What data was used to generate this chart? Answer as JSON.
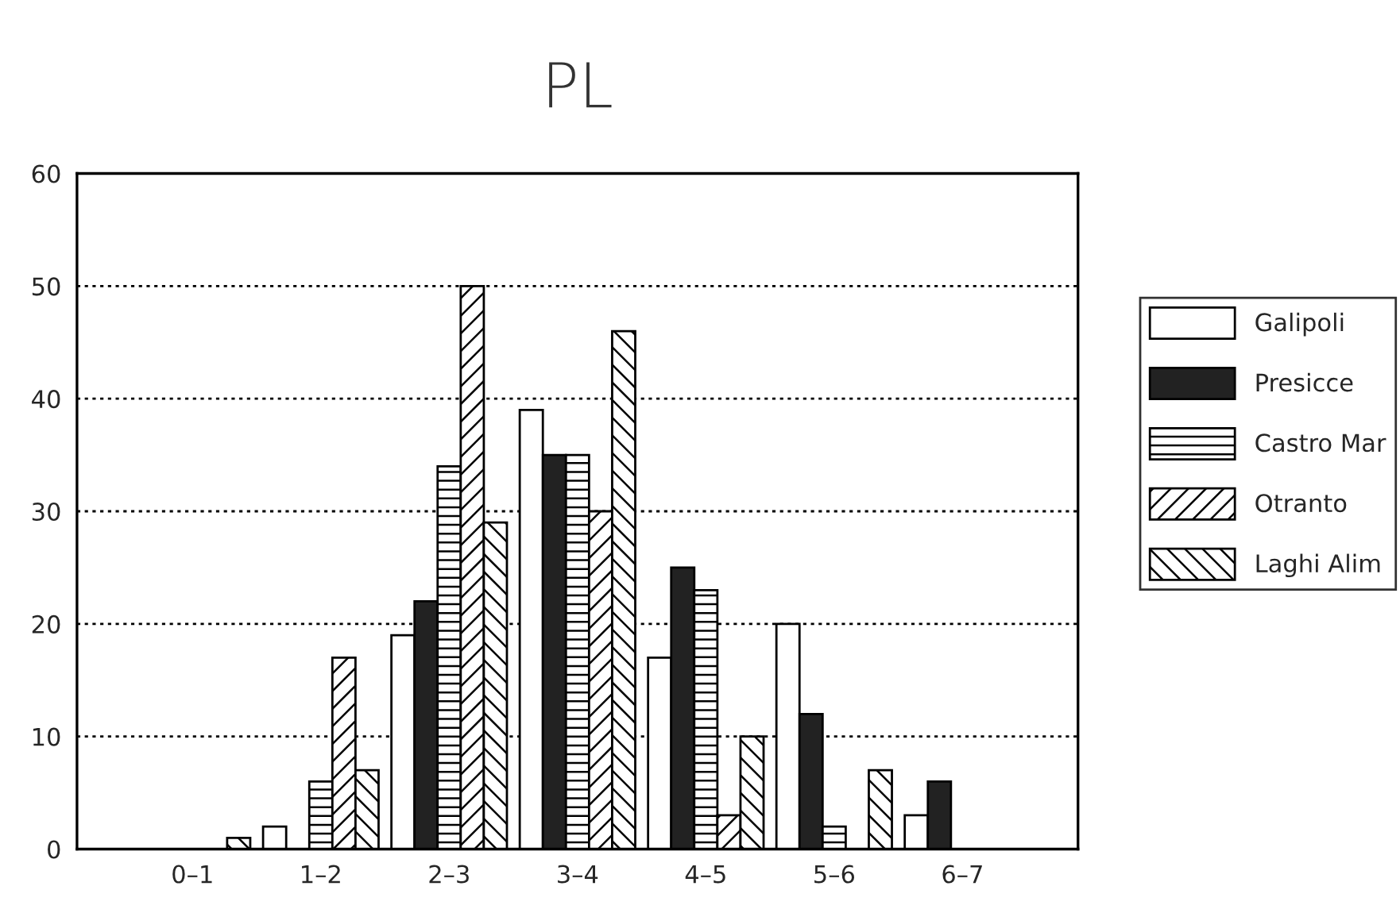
{
  "chart_data": {
    "type": "bar",
    "title": "PL",
    "categories": [
      "0–1",
      "1–2",
      "2–3",
      "3–4",
      "4–5",
      "5–6",
      "6–7"
    ],
    "series": [
      {
        "name": "Galipoli",
        "color": "#ffffff",
        "values": [
          0,
          2,
          19,
          39,
          17,
          20,
          3
        ]
      },
      {
        "name": "Presicce",
        "color": "#222222",
        "values": [
          0,
          0,
          22,
          35,
          25,
          12,
          6
        ]
      },
      {
        "name": "Castro Mar",
        "color": "#000000",
        "values": [
          0,
          6,
          34,
          35,
          23,
          2,
          0
        ]
      },
      {
        "name": "Otranto",
        "color": "#000000",
        "values": [
          0,
          17,
          50,
          30,
          3,
          0,
          0
        ]
      },
      {
        "name": "Laghi Alim",
        "color": "#000000",
        "values": [
          1,
          7,
          29,
          46,
          10,
          7,
          0
        ]
      }
    ],
    "ylim": [
      0,
      60
    ],
    "yticks": [
      0,
      10,
      20,
      30,
      40,
      50,
      60
    ],
    "grid": "y",
    "legend": "right"
  }
}
